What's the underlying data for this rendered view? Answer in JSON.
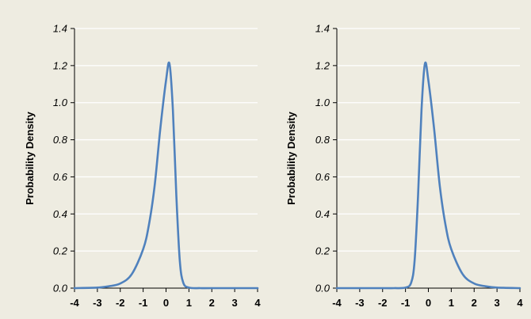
{
  "chart_data": [
    {
      "type": "line",
      "title": "",
      "xlabel": "",
      "ylabel": "Probability Density",
      "xlim": [
        -4,
        4
      ],
      "ylim": [
        0,
        1.4
      ],
      "x_ticks": [
        "-4",
        "-3",
        "-2",
        "-1",
        "0",
        "1",
        "2",
        "3",
        "4"
      ],
      "y_ticks": [
        "0.0",
        "0.2",
        "0.4",
        "0.6",
        "0.8",
        "1.0",
        "1.2",
        "1.4"
      ],
      "grid": "horizontal",
      "legend": "none",
      "series": [
        {
          "color": "#4f81bd",
          "x": [
            -4.0,
            -3.0,
            -2.5,
            -2.0,
            -1.5,
            -1.0,
            -0.75,
            -0.5,
            -0.25,
            0.0,
            0.15,
            0.3,
            0.45,
            0.6,
            0.75,
            1.0,
            1.5,
            2.0,
            4.0
          ],
          "y": [
            0.0,
            0.003,
            0.01,
            0.025,
            0.075,
            0.21,
            0.34,
            0.55,
            0.86,
            1.12,
            1.21,
            0.96,
            0.5,
            0.15,
            0.03,
            0.003,
            0.0,
            0.0,
            0.0
          ]
        }
      ]
    },
    {
      "type": "line",
      "title": "",
      "xlabel": "",
      "ylabel": "Probability Density",
      "xlim": [
        -4,
        4
      ],
      "ylim": [
        0,
        1.4
      ],
      "x_ticks": [
        "-4",
        "-3",
        "-2",
        "-1",
        "0",
        "1",
        "2",
        "3",
        "4"
      ],
      "y_ticks": [
        "0.0",
        "0.2",
        "0.4",
        "0.6",
        "0.8",
        "1.0",
        "1.2",
        "1.4"
      ],
      "grid": "horizontal",
      "legend": "none",
      "series": [
        {
          "color": "#4f81bd",
          "x": [
            -4.0,
            -2.0,
            -1.5,
            -1.0,
            -0.75,
            -0.6,
            -0.45,
            -0.3,
            -0.15,
            0.0,
            0.25,
            0.5,
            0.75,
            1.0,
            1.5,
            2.0,
            2.5,
            3.0,
            4.0
          ],
          "y": [
            0.0,
            0.0,
            0.0,
            0.003,
            0.03,
            0.15,
            0.5,
            0.96,
            1.21,
            1.12,
            0.86,
            0.55,
            0.34,
            0.21,
            0.075,
            0.025,
            0.01,
            0.003,
            0.0
          ]
        }
      ]
    }
  ]
}
